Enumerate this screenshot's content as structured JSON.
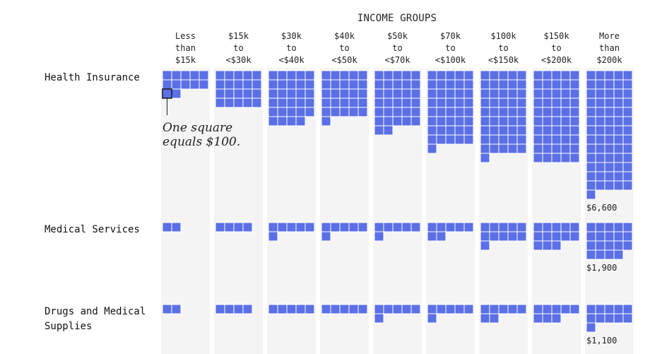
{
  "chart_data": {
    "type": "waffle",
    "title": "INCOME GROUPS",
    "unit": "One square equals $100.",
    "square_value": 100,
    "color": "#5b6fe6",
    "income_groups": [
      [
        "Less",
        "than",
        "$15k"
      ],
      [
        "$15k",
        "to",
        "<$30k"
      ],
      [
        "$30k",
        "to",
        "<$40k"
      ],
      [
        "$40k",
        "to",
        "<$50k"
      ],
      [
        "$50k",
        "to",
        "<$70k"
      ],
      [
        "$70k",
        "to",
        "<$100k"
      ],
      [
        "$100k",
        "to",
        "<$150k"
      ],
      [
        "$150k",
        "to",
        "<$200k"
      ],
      [
        "More",
        "than",
        "$200k"
      ]
    ],
    "series": [
      {
        "name": "Health Insurance",
        "label_lines": [
          "Health Insurance"
        ],
        "values": [
          1200,
          2000,
          2900,
          2600,
          3200,
          4100,
          4600,
          5000,
          6600
        ],
        "total_label": "$6,600"
      },
      {
        "name": "Medical Services",
        "label_lines": [
          "Medical Services"
        ],
        "values": [
          200,
          400,
          600,
          600,
          600,
          700,
          1100,
          1300,
          1900
        ],
        "total_label": "$1,900"
      },
      {
        "name": "Drugs and Medical Supplies",
        "label_lines": [
          "Drugs and Medical",
          "Supplies"
        ],
        "values": [
          200,
          400,
          500,
          500,
          600,
          600,
          700,
          800,
          1100
        ],
        "total_label": "$1,100"
      }
    ]
  }
}
